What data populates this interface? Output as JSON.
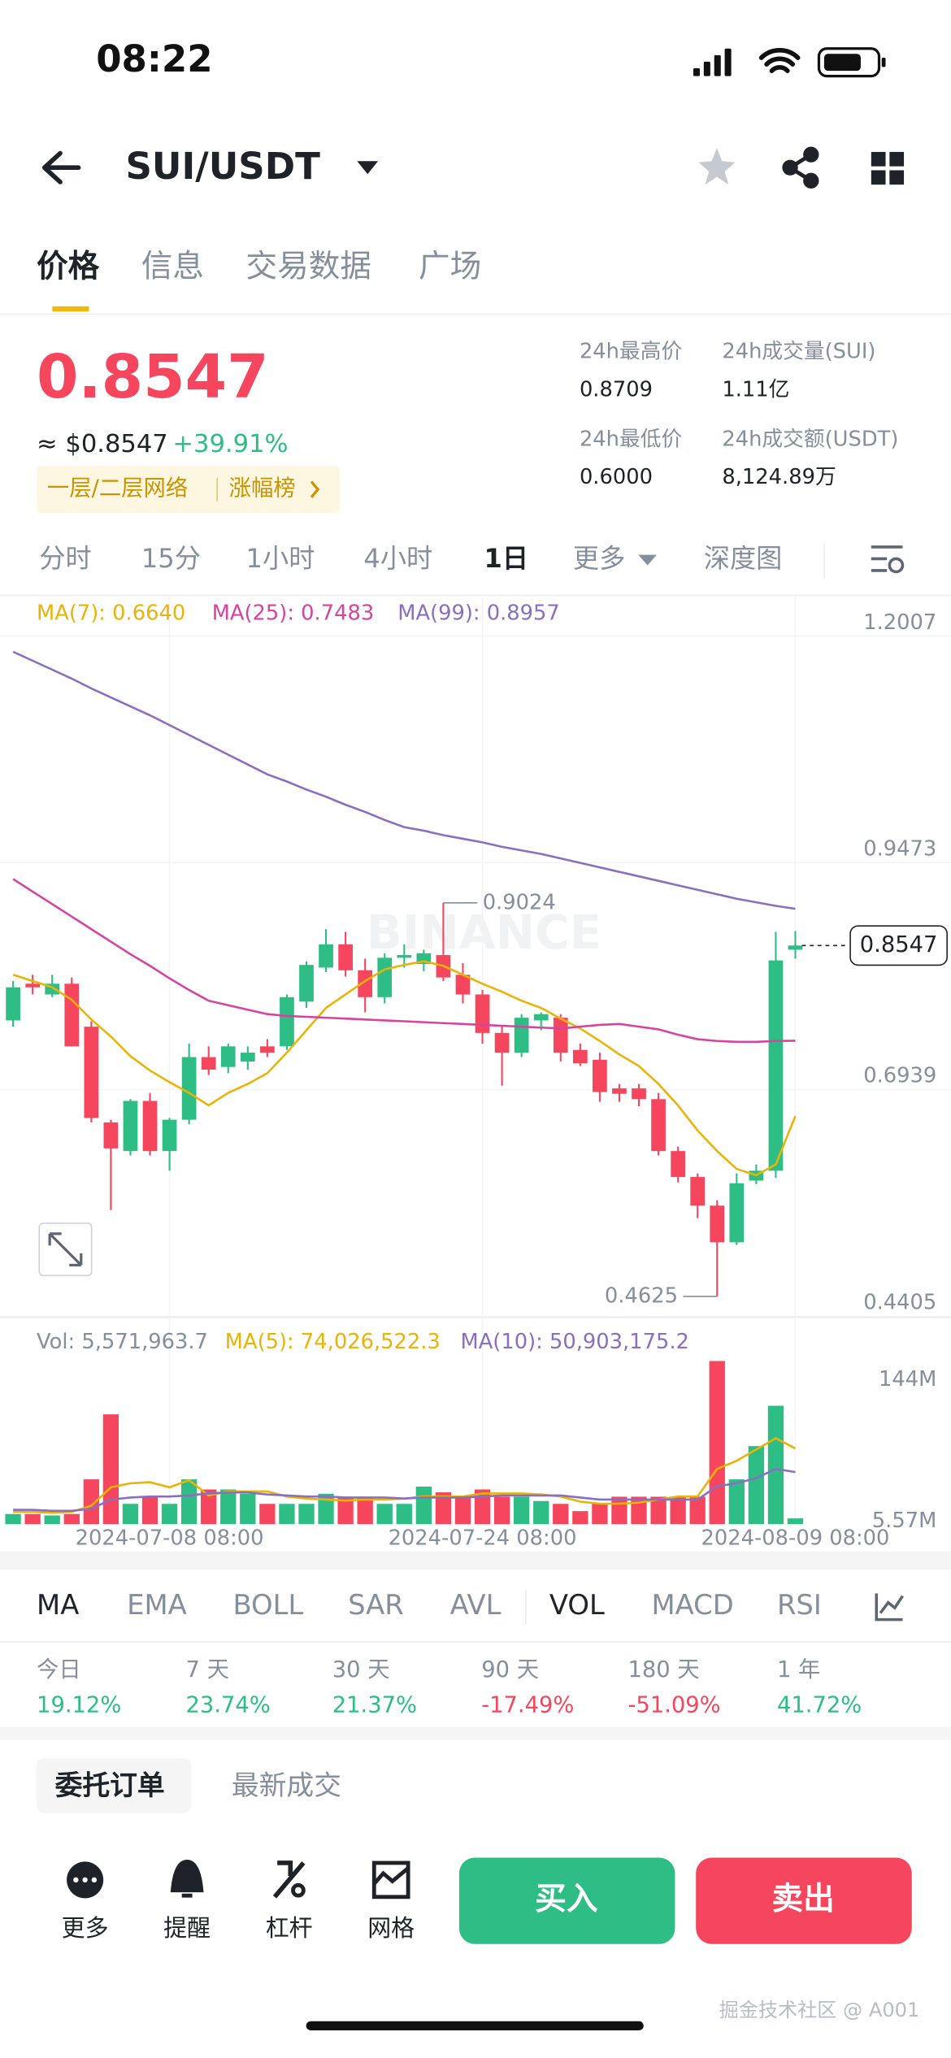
{
  "status": {
    "time": "08:22"
  },
  "header": {
    "pair": "SUI/USDT"
  },
  "tabs": [
    "价格",
    "信息",
    "交易数据",
    "广场"
  ],
  "ticker": {
    "price": "0.8547",
    "usd": "≈ $0.8547",
    "change": "+39.91%",
    "tags": [
      "一层/二层网络",
      "涨幅榜"
    ],
    "stats": [
      {
        "label": "24h最高价",
        "value": "0.8709"
      },
      {
        "label": "24h成交量(SUI)",
        "value": "1.11亿"
      },
      {
        "label": "24h最低价",
        "value": "0.6000"
      },
      {
        "label": "24h成交额(USDT)",
        "value": "8,124.89万"
      }
    ]
  },
  "intervals": [
    "分时",
    "15分",
    "1小时",
    "4小时",
    "1日",
    "更多",
    "深度图"
  ],
  "chart_data": {
    "type": "candlestick",
    "watermark": "BINANCE",
    "up_color": "#2ebd85",
    "down_color": "#f6465d",
    "grid": true,
    "open": [
      0.771,
      0.812,
      0.8,
      0.812,
      0.764,
      0.657,
      0.625,
      0.681,
      0.625,
      0.66,
      0.73,
      0.719,
      0.725,
      0.742,
      0.742,
      0.792,
      0.83,
      0.856,
      0.827,
      0.797,
      0.841,
      0.834,
      0.844,
      0.822,
      0.8,
      0.757,
      0.735,
      0.771,
      0.774,
      0.738,
      0.727,
      0.695,
      0.695,
      0.683,
      0.625,
      0.596,
      0.564,
      0.523,
      0.592,
      0.603,
      0.85
    ],
    "high": [
      0.815,
      0.822,
      0.822,
      0.819,
      0.77,
      0.66,
      0.683,
      0.69,
      0.662,
      0.745,
      0.742,
      0.745,
      0.742,
      0.75,
      0.8,
      0.837,
      0.873,
      0.87,
      0.84,
      0.846,
      0.856,
      0.85,
      0.9024,
      0.835,
      0.805,
      0.765,
      0.778,
      0.78,
      0.778,
      0.745,
      0.735,
      0.7,
      0.7,
      0.69,
      0.63,
      0.6,
      0.57,
      0.6,
      0.61,
      0.87,
      0.8709
    ],
    "low": [
      0.764,
      0.8,
      0.797,
      0.742,
      0.657,
      0.559,
      0.62,
      0.62,
      0.603,
      0.655,
      0.71,
      0.712,
      0.716,
      0.73,
      0.738,
      0.785,
      0.825,
      0.82,
      0.78,
      0.79,
      0.83,
      0.826,
      0.815,
      0.79,
      0.745,
      0.698,
      0.73,
      0.76,
      0.725,
      0.72,
      0.68,
      0.68,
      0.675,
      0.62,
      0.59,
      0.55,
      0.4625,
      0.52,
      0.588,
      0.595,
      0.84
    ],
    "close": [
      0.808,
      0.808,
      0.812,
      0.742,
      0.662,
      0.628,
      0.681,
      0.625,
      0.66,
      0.73,
      0.716,
      0.742,
      0.735,
      0.735,
      0.797,
      0.833,
      0.856,
      0.827,
      0.797,
      0.841,
      0.844,
      0.846,
      0.819,
      0.8,
      0.757,
      0.735,
      0.774,
      0.778,
      0.735,
      0.723,
      0.691,
      0.689,
      0.683,
      0.625,
      0.596,
      0.564,
      0.523,
      0.589,
      0.603,
      0.838,
      0.8547
    ],
    "ylim": [
      0.4405,
      1.2007
    ],
    "yticks": [
      0.4405,
      0.6939,
      0.9473,
      1.2007
    ],
    "xticks": [
      {
        "value": 8,
        "label": "2024-07-08 08:00"
      },
      {
        "value": 24,
        "label": "2024-07-24 08:00"
      },
      {
        "value": 40,
        "label": "2024-08-09 08:00"
      }
    ],
    "ma": [
      {
        "name": "MA(7): 0.6640",
        "color": "#e9b308",
        "values": [
          0.822,
          0.815,
          0.808,
          0.794,
          0.772,
          0.753,
          0.731,
          0.715,
          0.702,
          0.69,
          0.676,
          0.69,
          0.7,
          0.712,
          0.735,
          0.76,
          0.785,
          0.8,
          0.815,
          0.828,
          0.833,
          0.837,
          0.832,
          0.822,
          0.812,
          0.803,
          0.793,
          0.785,
          0.773,
          0.762,
          0.748,
          0.733,
          0.72,
          0.7,
          0.676,
          0.648,
          0.625,
          0.605,
          0.598,
          0.61,
          0.664
        ]
      },
      {
        "name": "MA(25): 0.7483",
        "color": "#d6449f",
        "values": [
          0.929,
          0.915,
          0.901,
          0.887,
          0.873,
          0.859,
          0.845,
          0.832,
          0.818,
          0.805,
          0.793,
          0.788,
          0.783,
          0.778,
          0.776,
          0.775,
          0.774,
          0.773,
          0.772,
          0.771,
          0.77,
          0.769,
          0.768,
          0.767,
          0.766,
          0.765,
          0.764,
          0.763,
          0.762,
          0.764,
          0.766,
          0.767,
          0.764,
          0.761,
          0.755,
          0.75,
          0.748,
          0.747,
          0.747,
          0.748,
          0.7483
        ]
      },
      {
        "name": "MA(99): 0.8957",
        "color": "#8a6fc0",
        "values": [
          1.183,
          1.173,
          1.163,
          1.153,
          1.142,
          1.132,
          1.122,
          1.112,
          1.101,
          1.09,
          1.079,
          1.068,
          1.057,
          1.046,
          1.038,
          1.029,
          1.021,
          1.012,
          1.004,
          0.995,
          0.987,
          0.983,
          0.978,
          0.974,
          0.97,
          0.965,
          0.961,
          0.957,
          0.952,
          0.947,
          0.942,
          0.937,
          0.932,
          0.927,
          0.922,
          0.917,
          0.912,
          0.907,
          0.903,
          0.899,
          0.8957
        ]
      }
    ],
    "volume": {
      "name": "Vol: 5,571,963.7",
      "values": [
        9.9,
        9.9,
        8.5,
        9.9,
        43.8,
        107.4,
        19.8,
        26.8,
        19.8,
        43.8,
        33.9,
        33.9,
        29.7,
        19.8,
        19.8,
        19.8,
        29.7,
        26.8,
        26.8,
        19.8,
        19.8,
        36.7,
        31.1,
        26.8,
        33.9,
        26.8,
        26.8,
        22.6,
        19.8,
        12.7,
        19.8,
        26.8,
        26.8,
        26.8,
        26.8,
        26.8,
        159.6,
        43.8,
        76.3,
        115.8,
        5.57
      ],
      "ylim": [
        0,
        160
      ],
      "yticks": [
        {
          "value": 5.57,
          "label": "5.57M"
        },
        {
          "value": 144,
          "label": "144M"
        }
      ],
      "series": [
        {
          "name": "MA(5): 74,026,522.3",
          "color": "#e9b308",
          "values": [
            12,
            12,
            11,
            12,
            18,
            36,
            40,
            41,
            36,
            43,
            28,
            32,
            32,
            32,
            27,
            25,
            24,
            23,
            24,
            24,
            25,
            27,
            27,
            27,
            30,
            30,
            30,
            29,
            27,
            22,
            20,
            20,
            21,
            24,
            27,
            27,
            54,
            62,
            73,
            84,
            74.03
          ]
        },
        {
          "name": "MA(10): 50,903,175.2",
          "color": "#8a6fc0",
          "values": [
            14,
            14,
            13,
            13,
            15,
            24,
            26,
            27,
            27,
            28,
            30,
            31,
            31,
            29,
            28,
            27,
            27,
            26,
            26,
            26,
            25,
            26,
            26,
            26,
            27,
            28,
            28,
            28,
            28,
            26,
            24,
            24,
            24,
            24,
            24,
            24,
            37,
            40,
            45,
            54,
            50.9
          ]
        }
      ]
    }
  },
  "indicators": [
    "MA",
    "EMA",
    "BOLL",
    "SAR",
    "AVL",
    "VOL",
    "MACD",
    "RSI"
  ],
  "performance": [
    {
      "label": "今日",
      "value": "19.12%"
    },
    {
      "label": "7 天",
      "value": "23.74%"
    },
    {
      "label": "30 天",
      "value": "21.37%"
    },
    {
      "label": "90 天",
      "value": "-17.49%"
    },
    {
      "label": "180 天",
      "value": "-51.09%"
    },
    {
      "label": "1 年",
      "value": "41.72%"
    }
  ],
  "orders": [
    "委托订单",
    "最新成交"
  ],
  "toolbar": [
    "更多",
    "提醒",
    "杠杆",
    "网格"
  ],
  "actions": [
    "买入",
    "卖出"
  ],
  "watermark": "掘金技术社区 @ A001"
}
